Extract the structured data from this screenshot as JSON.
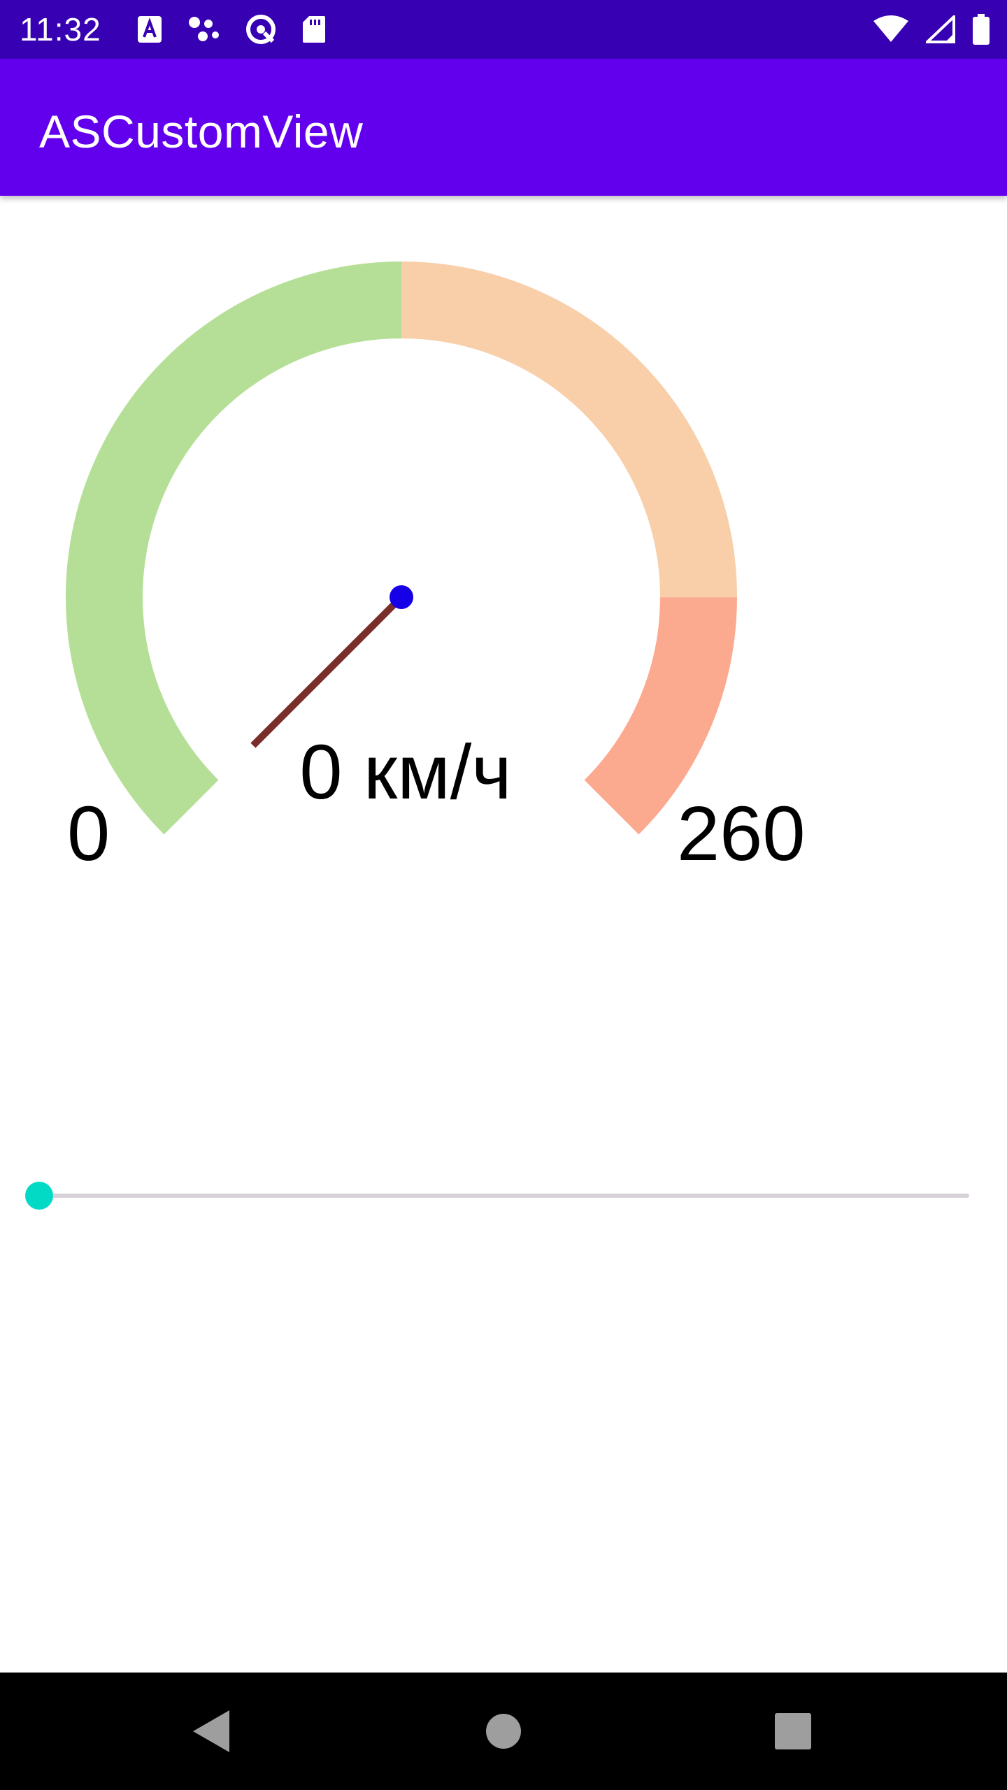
{
  "status_bar": {
    "time": "11:32",
    "left_icons": [
      "accessibility-icon",
      "assistant-icon",
      "vpn-icon",
      "sd-card-icon"
    ],
    "right_icons": [
      "wifi-icon",
      "signal-icon",
      "battery-icon"
    ]
  },
  "app_bar": {
    "title": "ASCustomView",
    "color": "#6200ee",
    "status_color": "#3700b3"
  },
  "gauge": {
    "min_label": "0",
    "max_label": "260",
    "speed_text": "0 км/ч",
    "value": 0,
    "min": 0,
    "max": 260,
    "zones": [
      {
        "name": "green-zone",
        "from": 0,
        "to": 130,
        "color": "#b5df96"
      },
      {
        "name": "orange-zone",
        "from": 130,
        "to": 216.7,
        "color": "#f8cfa9"
      },
      {
        "name": "red-zone",
        "from": 216.7,
        "to": 260,
        "color": "#fba98f"
      }
    ],
    "needle_color": "#7a2e2a",
    "hub_color": "#1500e8"
  },
  "slider": {
    "value": 0,
    "min": 0,
    "max": 260,
    "color": "#03dac5"
  },
  "nav_bar": {
    "buttons": [
      "back-icon",
      "home-icon",
      "recents-icon"
    ]
  }
}
